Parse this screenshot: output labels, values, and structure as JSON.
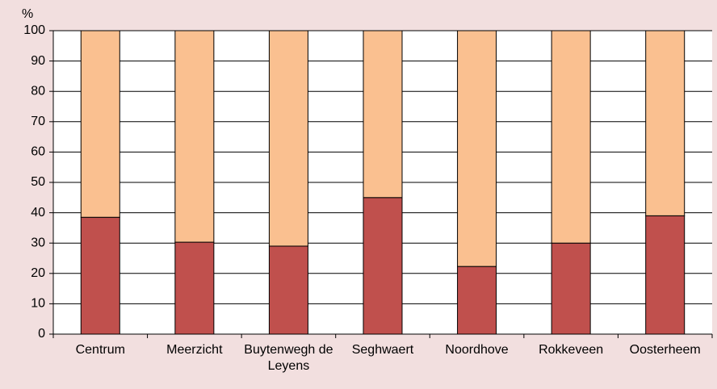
{
  "chart_data": {
    "type": "stacked_bar",
    "y_label": "%",
    "categories": [
      "Centrum",
      "Meerzicht",
      "Buytenwegh de Leyens",
      "Seghwaert",
      "Noordhove",
      "Rokkeveen",
      "Oosterheem"
    ],
    "series": [
      {
        "color": "#c0504d",
        "values": [
          38.5,
          30.3,
          29,
          45,
          22.3,
          30,
          39
        ]
      },
      {
        "color": "#fac090",
        "values": [
          61.5,
          69.7,
          71,
          55,
          77.7,
          70,
          61
        ]
      }
    ],
    "ylim": [
      0,
      100
    ],
    "yticks": [
      0,
      10,
      20,
      30,
      40,
      50,
      60,
      70,
      80,
      90,
      100
    ],
    "grid": true
  }
}
